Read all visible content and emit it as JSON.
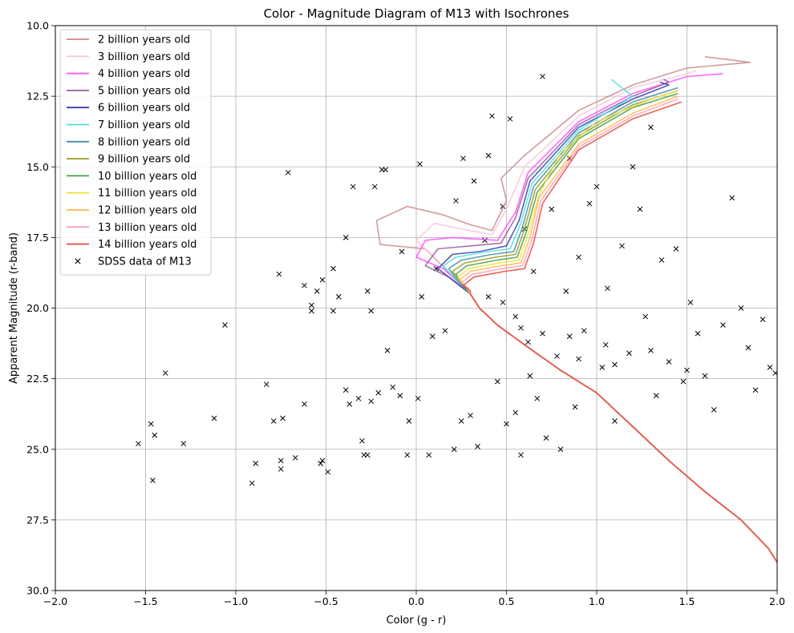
{
  "chart_data": {
    "type": "scatter",
    "title": "Color - Magnitude Diagram of M13 with Isochrones",
    "xlabel": "Color (g - r)",
    "ylabel": "Apparent Magnitude (r-band)",
    "xlim": [
      -2.0,
      2.0
    ],
    "ylim": [
      30.0,
      10.0
    ],
    "y_inverted": true,
    "grid": true,
    "legend_position": "upper-left",
    "x_ticks": [
      "−2.0",
      "−1.5",
      "−1.0",
      "−0.5",
      "0.0",
      "0.5",
      "1.0",
      "1.5",
      "2.0"
    ],
    "x_tick_values": [
      -2.0,
      -1.5,
      -1.0,
      -0.5,
      0.0,
      0.5,
      1.0,
      1.5,
      2.0
    ],
    "y_ticks": [
      "10.0",
      "12.5",
      "15.0",
      "17.5",
      "20.0",
      "22.5",
      "25.0",
      "27.5",
      "30.0"
    ],
    "y_tick_values": [
      10.0,
      12.5,
      15.0,
      17.5,
      20.0,
      22.5,
      25.0,
      27.5,
      30.0
    ],
    "isochrones": [
      {
        "name": "2 billion years old",
        "color": "#c98a8a",
        "to": 0.95,
        "branch": [
          [
            0.05,
            17.9
          ],
          [
            -0.2,
            17.75
          ],
          [
            -0.22,
            16.9
          ],
          [
            -0.05,
            16.4
          ],
          [
            0.15,
            16.7
          ],
          [
            0.3,
            17.05
          ],
          [
            0.42,
            17.25
          ],
          [
            0.5,
            16.2
          ],
          [
            0.47,
            15.4
          ],
          [
            0.6,
            14.6
          ],
          [
            0.9,
            13.0
          ],
          [
            1.2,
            12.1
          ],
          [
            1.5,
            11.5
          ],
          [
            1.85,
            11.3
          ],
          [
            1.6,
            11.1
          ]
        ]
      },
      {
        "name": "3 billion years old",
        "color": "#f7c6dc",
        "to": 0.96,
        "branch": [
          [
            0.1,
            18.2
          ],
          [
            0.0,
            17.6
          ],
          [
            0.1,
            17.0
          ],
          [
            0.25,
            17.2
          ],
          [
            0.42,
            17.4
          ],
          [
            0.5,
            16.5
          ],
          [
            0.6,
            15.0
          ],
          [
            0.9,
            13.2
          ],
          [
            1.2,
            12.2
          ],
          [
            1.5,
            11.7
          ],
          [
            1.55,
            11.6
          ]
        ]
      },
      {
        "name": "4 billion years old",
        "color": "#ff4dff",
        "to": 0.97,
        "branch": [
          [
            0.15,
            18.6
          ],
          [
            0.0,
            18.2
          ],
          [
            0.05,
            17.6
          ],
          [
            0.2,
            17.5
          ],
          [
            0.45,
            17.6
          ],
          [
            0.55,
            16.6
          ],
          [
            0.62,
            15.2
          ],
          [
            0.9,
            13.4
          ],
          [
            1.2,
            12.4
          ],
          [
            1.5,
            11.8
          ],
          [
            1.7,
            11.7
          ]
        ]
      },
      {
        "name": "5 billion years old",
        "color": "#9b5aa0",
        "to": 0.97,
        "branch": [
          [
            0.18,
            18.9
          ],
          [
            0.05,
            18.5
          ],
          [
            0.12,
            17.9
          ],
          [
            0.3,
            17.8
          ],
          [
            0.47,
            17.7
          ],
          [
            0.55,
            16.8
          ],
          [
            0.62,
            15.4
          ],
          [
            0.9,
            13.5
          ],
          [
            1.2,
            12.5
          ],
          [
            1.4,
            12.0
          ],
          [
            1.37,
            11.9
          ]
        ]
      },
      {
        "name": "6 billion years old",
        "color": "#3a3aaa",
        "to": 0.97,
        "branch": [
          [
            0.2,
            19.0
          ],
          [
            0.12,
            18.6
          ],
          [
            0.2,
            18.1
          ],
          [
            0.35,
            18.0
          ],
          [
            0.5,
            17.8
          ],
          [
            0.57,
            16.9
          ],
          [
            0.63,
            15.5
          ],
          [
            0.9,
            13.6
          ],
          [
            1.2,
            12.6
          ],
          [
            1.4,
            12.1
          ],
          [
            1.35,
            12.0
          ]
        ]
      },
      {
        "name": "7 billion years old",
        "color": "#4de0e0",
        "to": 0.97,
        "branch": [
          [
            0.22,
            19.0
          ],
          [
            0.15,
            18.5
          ],
          [
            0.22,
            18.2
          ],
          [
            0.4,
            18.0
          ],
          [
            0.52,
            17.9
          ],
          [
            0.58,
            17.0
          ],
          [
            0.64,
            15.6
          ],
          [
            0.9,
            13.7
          ],
          [
            1.1,
            12.9
          ],
          [
            1.2,
            12.5
          ],
          [
            1.08,
            11.9
          ]
        ]
      },
      {
        "name": "8 billion years old",
        "color": "#3f8fa8",
        "to": 0.97,
        "branch": [
          [
            0.24,
            19.1
          ],
          [
            0.18,
            18.6
          ],
          [
            0.25,
            18.3
          ],
          [
            0.42,
            18.1
          ],
          [
            0.54,
            18.0
          ],
          [
            0.59,
            17.1
          ],
          [
            0.65,
            15.7
          ],
          [
            0.9,
            13.8
          ],
          [
            1.2,
            12.7
          ],
          [
            1.45,
            12.2
          ]
        ]
      },
      {
        "name": "9 billion years old",
        "color": "#9a9a20",
        "to": 0.97,
        "branch": [
          [
            0.25,
            19.1
          ],
          [
            0.2,
            18.7
          ],
          [
            0.27,
            18.4
          ],
          [
            0.44,
            18.2
          ],
          [
            0.55,
            18.1
          ],
          [
            0.6,
            17.2
          ],
          [
            0.66,
            15.8
          ],
          [
            0.9,
            13.9
          ],
          [
            1.2,
            12.8
          ],
          [
            1.45,
            12.3
          ]
        ]
      },
      {
        "name": "10 billion years old",
        "color": "#40a040",
        "to": 0.98,
        "branch": [
          [
            0.26,
            19.2
          ],
          [
            0.22,
            18.8
          ],
          [
            0.28,
            18.5
          ],
          [
            0.45,
            18.3
          ],
          [
            0.56,
            18.2
          ],
          [
            0.61,
            17.3
          ],
          [
            0.67,
            15.9
          ],
          [
            0.9,
            14.0
          ],
          [
            1.2,
            12.9
          ],
          [
            1.45,
            12.4
          ]
        ]
      },
      {
        "name": "11 billion years old",
        "color": "#f0e040",
        "to": 0.98,
        "branch": [
          [
            0.27,
            19.2
          ],
          [
            0.23,
            18.9
          ],
          [
            0.29,
            18.6
          ],
          [
            0.46,
            18.4
          ],
          [
            0.57,
            18.3
          ],
          [
            0.62,
            17.4
          ],
          [
            0.68,
            16.0
          ],
          [
            0.8,
            14.5
          ],
          [
            1.0,
            13.4
          ],
          [
            1.3,
            12.6
          ],
          [
            1.45,
            12.3
          ]
        ]
      },
      {
        "name": "12 billion years old",
        "color": "#ffb84d",
        "to": 0.98,
        "branch": [
          [
            0.28,
            19.3
          ],
          [
            0.24,
            19.0
          ],
          [
            0.3,
            18.7
          ],
          [
            0.47,
            18.5
          ],
          [
            0.58,
            18.4
          ],
          [
            0.63,
            17.5
          ],
          [
            0.68,
            16.1
          ],
          [
            0.9,
            14.2
          ],
          [
            1.2,
            13.1
          ],
          [
            1.45,
            12.5
          ]
        ]
      },
      {
        "name": "13 billion years old",
        "color": "#ff9eb5",
        "to": 0.98,
        "branch": [
          [
            0.29,
            19.3
          ],
          [
            0.25,
            19.1
          ],
          [
            0.31,
            18.8
          ],
          [
            0.48,
            18.6
          ],
          [
            0.59,
            18.5
          ],
          [
            0.64,
            17.6
          ],
          [
            0.69,
            16.2
          ],
          [
            0.9,
            14.3
          ],
          [
            1.2,
            13.2
          ],
          [
            1.45,
            12.6
          ]
        ]
      },
      {
        "name": "14 billion years old",
        "color": "#e8463c",
        "to": 0.98,
        "branch": [
          [
            0.3,
            19.4
          ],
          [
            0.26,
            19.2
          ],
          [
            0.32,
            18.9
          ],
          [
            0.49,
            18.7
          ],
          [
            0.6,
            18.6
          ],
          [
            0.65,
            17.7
          ],
          [
            0.7,
            16.3
          ],
          [
            0.9,
            14.4
          ],
          [
            1.2,
            13.3
          ],
          [
            1.47,
            12.7
          ]
        ]
      }
    ],
    "main_sequence": [
      [
        0.3,
        19.5
      ],
      [
        0.35,
        20.0
      ],
      [
        0.45,
        20.6
      ],
      [
        0.6,
        21.3
      ],
      [
        0.8,
        22.2
      ],
      [
        1.0,
        23.0
      ],
      [
        1.2,
        24.2
      ],
      [
        1.4,
        25.4
      ],
      [
        1.6,
        26.5
      ],
      [
        1.8,
        27.5
      ],
      [
        1.95,
        28.5
      ],
      [
        2.0,
        29.0
      ]
    ],
    "scatter": {
      "name": "SDSS data of M13",
      "marker": "x",
      "color": "#000000",
      "points": [
        [
          -1.54,
          24.8
        ],
        [
          -1.47,
          24.1
        ],
        [
          -1.45,
          24.5
        ],
        [
          -1.46,
          26.1
        ],
        [
          -1.39,
          22.3
        ],
        [
          -1.29,
          24.8
        ],
        [
          -1.12,
          23.9
        ],
        [
          -1.06,
          20.6
        ],
        [
          -0.91,
          26.2
        ],
        [
          -0.89,
          25.5
        ],
        [
          -0.83,
          22.7
        ],
        [
          -0.79,
          24.0
        ],
        [
          -0.76,
          18.8
        ],
        [
          -0.75,
          25.4
        ],
        [
          -0.75,
          25.7
        ],
        [
          -0.74,
          23.9
        ],
        [
          -0.71,
          15.2
        ],
        [
          -0.67,
          25.3
        ],
        [
          -0.62,
          23.4
        ],
        [
          -0.62,
          19.2
        ],
        [
          -0.58,
          19.9
        ],
        [
          -0.58,
          20.1
        ],
        [
          -0.55,
          19.4
        ],
        [
          -0.53,
          25.5
        ],
        [
          -0.52,
          19.0
        ],
        [
          -0.52,
          25.4
        ],
        [
          -0.49,
          25.8
        ],
        [
          -0.46,
          18.6
        ],
        [
          -0.46,
          20.1
        ],
        [
          -0.43,
          19.6
        ],
        [
          -0.39,
          17.5
        ],
        [
          -0.39,
          22.9
        ],
        [
          -0.37,
          23.4
        ],
        [
          -0.35,
          15.7
        ],
        [
          -0.32,
          23.2
        ],
        [
          -0.3,
          24.7
        ],
        [
          -0.29,
          25.2
        ],
        [
          -0.27,
          19.4
        ],
        [
          -0.27,
          25.2
        ],
        [
          -0.25,
          20.1
        ],
        [
          -0.25,
          23.3
        ],
        [
          -0.23,
          15.7
        ],
        [
          -0.21,
          23.0
        ],
        [
          -0.19,
          15.1
        ],
        [
          -0.17,
          15.1
        ],
        [
          -0.16,
          21.5
        ],
        [
          -0.13,
          22.8
        ],
        [
          -0.09,
          23.1
        ],
        [
          -0.08,
          18.0
        ],
        [
          -0.05,
          25.2
        ],
        [
          -0.04,
          24.0
        ],
        [
          0.01,
          23.2
        ],
        [
          0.02,
          14.9
        ],
        [
          0.03,
          19.6
        ],
        [
          0.07,
          25.2
        ],
        [
          0.09,
          21.0
        ],
        [
          0.11,
          18.6
        ],
        [
          0.16,
          20.8
        ],
        [
          0.21,
          25.0
        ],
        [
          0.22,
          16.2
        ],
        [
          0.25,
          24.0
        ],
        [
          0.26,
          14.7
        ],
        [
          0.3,
          23.8
        ],
        [
          0.32,
          15.5
        ],
        [
          0.34,
          24.9
        ],
        [
          0.38,
          17.6
        ],
        [
          0.4,
          14.6
        ],
        [
          0.42,
          13.2
        ],
        [
          0.45,
          22.6
        ],
        [
          0.48,
          16.4
        ],
        [
          0.5,
          24.1
        ],
        [
          0.52,
          13.3
        ],
        [
          0.55,
          23.7
        ],
        [
          0.58,
          25.2
        ],
        [
          0.6,
          17.2
        ],
        [
          0.63,
          22.4
        ],
        [
          0.65,
          18.7
        ],
        [
          0.67,
          23.2
        ],
        [
          0.7,
          11.8
        ],
        [
          0.72,
          24.6
        ],
        [
          0.75,
          16.5
        ],
        [
          0.78,
          21.7
        ],
        [
          0.8,
          25.0
        ],
        [
          0.83,
          19.4
        ],
        [
          0.85,
          14.7
        ],
        [
          0.88,
          23.5
        ],
        [
          0.9,
          18.2
        ],
        [
          0.93,
          20.8
        ],
        [
          0.96,
          16.3
        ],
        [
          1.0,
          15.7
        ],
        [
          1.03,
          22.1
        ],
        [
          1.06,
          19.3
        ],
        [
          1.1,
          24.0
        ],
        [
          1.14,
          17.8
        ],
        [
          1.18,
          21.6
        ],
        [
          1.2,
          15.0
        ],
        [
          1.24,
          16.5
        ],
        [
          1.27,
          20.3
        ],
        [
          1.3,
          13.6
        ],
        [
          1.33,
          23.1
        ],
        [
          1.36,
          18.3
        ],
        [
          1.4,
          21.9
        ],
        [
          1.44,
          17.9
        ],
        [
          1.48,
          22.6
        ],
        [
          1.52,
          19.8
        ],
        [
          1.56,
          20.9
        ],
        [
          1.6,
          22.4
        ],
        [
          1.65,
          23.6
        ],
        [
          1.7,
          20.6
        ],
        [
          1.75,
          16.1
        ],
        [
          1.8,
          20.0
        ],
        [
          1.84,
          21.4
        ],
        [
          1.88,
          22.9
        ],
        [
          1.92,
          20.4
        ],
        [
          1.96,
          22.1
        ],
        [
          1.99,
          22.3
        ],
        [
          0.55,
          20.3
        ],
        [
          0.48,
          19.8
        ],
        [
          0.7,
          20.9
        ],
        [
          0.62,
          21.2
        ],
        [
          0.9,
          21.8
        ],
        [
          1.1,
          22.0
        ],
        [
          1.3,
          21.5
        ],
        [
          1.5,
          22.2
        ],
        [
          0.4,
          19.6
        ],
        [
          0.58,
          20.7
        ],
        [
          0.85,
          21.0
        ],
        [
          1.05,
          21.3
        ]
      ]
    }
  }
}
